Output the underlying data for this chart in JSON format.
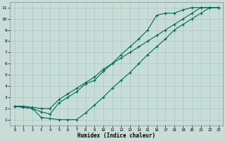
{
  "title": "",
  "xlabel": "Humidex (Indice chaleur)",
  "ylabel": "",
  "xlim": [
    -0.5,
    23.5
  ],
  "ylim": [
    0.5,
    11.5
  ],
  "xticks": [
    0,
    1,
    2,
    3,
    4,
    5,
    6,
    7,
    8,
    9,
    10,
    11,
    12,
    13,
    14,
    15,
    16,
    17,
    18,
    19,
    20,
    21,
    22,
    23
  ],
  "yticks": [
    1,
    2,
    3,
    4,
    5,
    6,
    7,
    8,
    9,
    10,
    11
  ],
  "background_color": "#c8ddd8",
  "grid_color": "#a8c8c2",
  "line_color": "#006858",
  "line1_x": [
    0,
    1,
    2,
    3,
    4,
    5,
    6,
    7,
    8,
    9,
    10,
    11,
    12,
    13,
    14,
    15,
    16,
    17,
    18,
    19,
    20,
    21,
    22,
    23
  ],
  "line1_y": [
    2.2,
    2.1,
    2.0,
    1.2,
    1.1,
    1.0,
    1.0,
    1.0,
    1.6,
    2.3,
    3.0,
    3.8,
    4.5,
    5.2,
    6.0,
    6.8,
    7.5,
    8.2,
    9.0,
    9.5,
    10.0,
    10.5,
    11.0,
    11.0
  ],
  "line2_x": [
    0,
    1,
    2,
    3,
    4,
    5,
    6,
    7,
    8,
    9,
    10,
    11,
    12,
    13,
    14,
    15,
    16,
    17,
    18,
    19,
    20,
    21,
    22,
    23
  ],
  "line2_y": [
    2.2,
    2.1,
    2.0,
    1.7,
    1.5,
    2.5,
    3.0,
    3.5,
    4.2,
    4.5,
    5.3,
    6.0,
    6.8,
    7.5,
    8.2,
    9.0,
    10.3,
    10.5,
    10.5,
    10.8,
    11.0,
    11.0,
    11.0,
    11.0
  ],
  "line3_x": [
    0,
    1,
    2,
    3,
    4,
    5,
    6,
    7,
    8,
    9,
    10,
    11,
    12,
    13,
    14,
    15,
    16,
    17,
    18,
    19,
    20,
    21,
    22,
    23
  ],
  "line3_y": [
    2.2,
    2.2,
    2.1,
    2.0,
    2.0,
    2.8,
    3.3,
    3.8,
    4.3,
    4.8,
    5.5,
    6.0,
    6.5,
    7.0,
    7.5,
    8.0,
    8.5,
    9.0,
    9.5,
    10.0,
    10.5,
    11.0,
    11.0,
    11.0
  ]
}
